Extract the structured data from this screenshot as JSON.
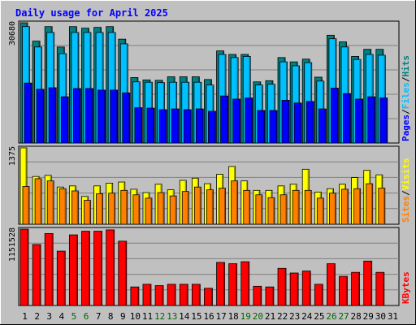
{
  "chart_data": [
    {
      "type": "bar",
      "title": "Daily usage for April 2025",
      "categories": [
        "1",
        "2",
        "3",
        "4",
        "5",
        "6",
        "7",
        "8",
        "9",
        "10",
        "11",
        "12",
        "13",
        "14",
        "15",
        "16",
        "17",
        "18",
        "19",
        "20",
        "21",
        "22",
        "23",
        "24",
        "25",
        "26",
        "27",
        "28",
        "29",
        "30",
        "31"
      ],
      "weekend_days": [
        "5",
        "6",
        "12",
        "13",
        "19",
        "20",
        "26",
        "27"
      ],
      "panel": "hits-files-pages",
      "ymax_label": "30680",
      "ylim": [
        0,
        30680
      ],
      "legend_right": [
        "Pages",
        "Files",
        "Hits"
      ],
      "series": [
        {
          "name": "Hits",
          "color": "#008080",
          "values": [
            30680,
            26000,
            29700,
            24500,
            29700,
            29300,
            29500,
            29700,
            26500,
            16700,
            16100,
            16000,
            16900,
            16900,
            16900,
            16200,
            23500,
            22600,
            22600,
            15600,
            15900,
            21800,
            20700,
            21400,
            16800,
            27500,
            25800,
            22100,
            23900,
            23900,
            0
          ]
        },
        {
          "name": "Files",
          "color": "#00c0ff",
          "values": [
            29700,
            24500,
            28200,
            22800,
            28200,
            28200,
            28200,
            28200,
            25300,
            15600,
            15500,
            15400,
            15500,
            15500,
            15500,
            14800,
            22600,
            21800,
            22100,
            14800,
            15000,
            20700,
            19700,
            20500,
            15800,
            26600,
            24500,
            21300,
            22600,
            22400,
            0
          ]
        },
        {
          "name": "Pages",
          "color": "#0000ff",
          "values": [
            15300,
            13700,
            14100,
            11800,
            13900,
            13900,
            13500,
            13500,
            12800,
            9000,
            8900,
            8500,
            8700,
            8500,
            8700,
            8100,
            12000,
            11200,
            11500,
            8300,
            8300,
            10900,
            10200,
            10600,
            8700,
            14000,
            12600,
            11200,
            11800,
            11500,
            0
          ]
        }
      ]
    },
    {
      "type": "bar",
      "panel": "visits-sites",
      "ymax_label": "1375",
      "ylim": [
        0,
        1375
      ],
      "legend_right": [
        "Sites",
        "Visits"
      ],
      "series": [
        {
          "name": "Visits",
          "color": "#ffff00",
          "values": [
            1375,
            860,
            880,
            670,
            690,
            500,
            690,
            740,
            760,
            630,
            570,
            720,
            620,
            790,
            830,
            730,
            900,
            1040,
            780,
            610,
            610,
            690,
            720,
            990,
            580,
            640,
            720,
            840,
            970,
            890,
            0
          ]
        },
        {
          "name": "Sites",
          "color": "#ff8000",
          "values": [
            680,
            820,
            780,
            640,
            600,
            430,
            550,
            560,
            610,
            530,
            470,
            570,
            510,
            590,
            670,
            620,
            650,
            780,
            610,
            530,
            480,
            530,
            610,
            610,
            470,
            560,
            630,
            640,
            730,
            650,
            0
          ]
        }
      ]
    },
    {
      "type": "bar",
      "panel": "kbytes",
      "ymax_label": "1151528",
      "ylim": [
        0,
        1151528
      ],
      "legend_right": [
        "KBytes"
      ],
      "series": [
        {
          "name": "KBytes",
          "color": "#ff0000",
          "values": [
            1151528,
            920000,
            1085000,
            820000,
            1065000,
            1120000,
            1120000,
            1140000,
            970000,
            280000,
            320000,
            300000,
            320000,
            320000,
            320000,
            260000,
            650000,
            630000,
            660000,
            290000,
            280000,
            560000,
            490000,
            520000,
            320000,
            630000,
            440000,
            500000,
            670000,
            500000,
            0
          ]
        }
      ]
    }
  ],
  "colors": {
    "background": "#c0c0c0",
    "plot_area": "#c0c0c0",
    "gridline": "#808080",
    "title": "#0000ff",
    "weekend_tick": "#006400",
    "weekday_tick": "#000000"
  }
}
